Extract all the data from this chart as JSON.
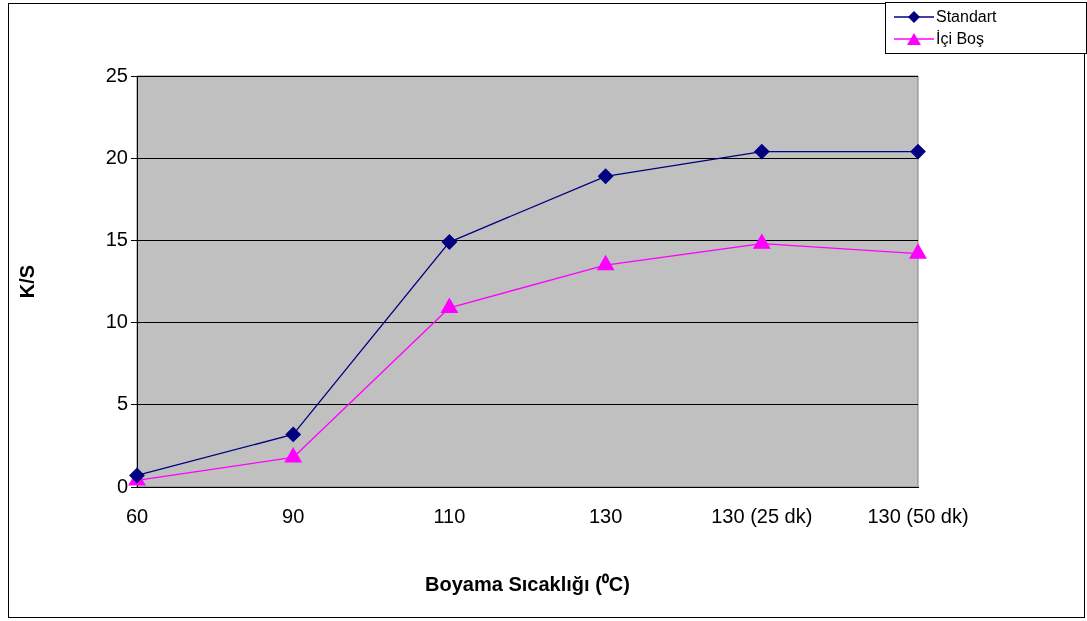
{
  "chart_data": {
    "type": "line",
    "xlabel": "Boyama Sıcaklığı (⁰C)",
    "ylabel": "K/S",
    "categories": [
      "60",
      "90",
      "110",
      "130",
      "130 (25 dk)",
      "130 (50 dk)"
    ],
    "series": [
      {
        "name": "Standart",
        "color": "#000080",
        "marker": "diamond",
        "values": [
          0.7,
          3.2,
          14.9,
          18.9,
          20.4,
          20.4
        ]
      },
      {
        "name": "İçi Boş",
        "color": "#ff00ff",
        "marker": "triangle",
        "values": [
          0.4,
          1.8,
          10.9,
          13.5,
          14.8,
          14.2
        ]
      }
    ],
    "ylim": [
      0,
      25
    ],
    "yticks": [
      0,
      5,
      10,
      15,
      20,
      25
    ],
    "grid": "y",
    "legend": "top right",
    "line_style": "solid"
  }
}
